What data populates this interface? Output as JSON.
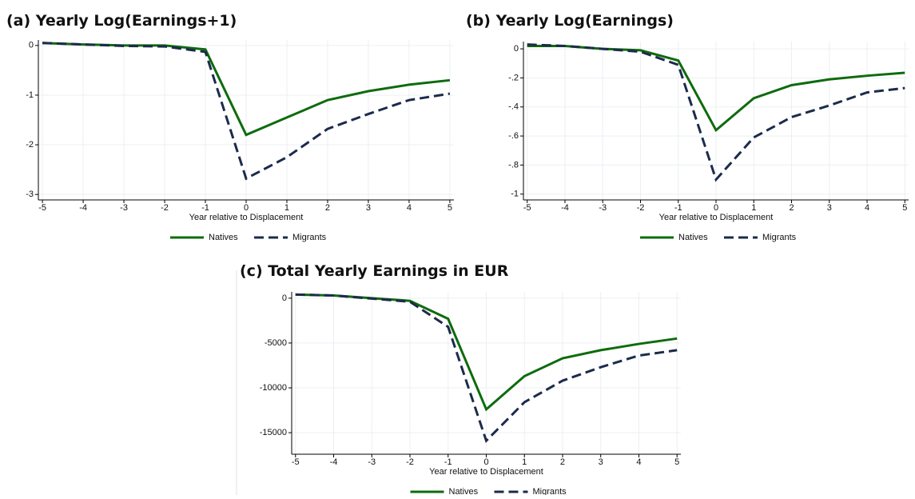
{
  "chart_data": [
    {
      "type": "line",
      "title": "(a) Yearly Log(Earnings+1)",
      "xlabel": "Year relative to Displacement",
      "x": [
        -5,
        -4,
        -3,
        -2,
        -1,
        0,
        1,
        2,
        3,
        4,
        5
      ],
      "series": [
        {
          "name": "Natives",
          "color": "#0e6b0e",
          "values": [
            0.05,
            0.02,
            0.0,
            0.0,
            -0.08,
            -1.8,
            -1.45,
            -1.1,
            -0.92,
            -0.79,
            -0.7
          ]
        },
        {
          "name": "Migrants",
          "color": "#1c2b4a",
          "values": [
            0.05,
            0.02,
            -0.01,
            -0.02,
            -0.13,
            -2.68,
            -2.25,
            -1.68,
            -1.38,
            -1.1,
            -0.97
          ]
        }
      ],
      "xlim": [
        -5.1,
        5.1
      ],
      "xticks": [
        -5,
        -4,
        -3,
        -2,
        -1,
        0,
        1,
        2,
        3,
        4,
        5
      ],
      "ylim": [
        -3.11,
        0.11
      ],
      "yticks": [
        0,
        -1,
        -2,
        -3
      ],
      "grid": true
    },
    {
      "type": "line",
      "title": "(b) Yearly Log(Earnings)",
      "xlabel": "Year relative to Displacement",
      "x": [
        -5,
        -4,
        -3,
        -2,
        -1,
        0,
        1,
        2,
        3,
        4,
        5
      ],
      "series": [
        {
          "name": "Natives",
          "color": "#0e6b0e",
          "values": [
            0.02,
            0.02,
            0.0,
            -0.01,
            -0.08,
            -0.56,
            -0.34,
            -0.25,
            -0.21,
            -0.185,
            -0.165
          ]
        },
        {
          "name": "Migrants",
          "color": "#1c2b4a",
          "values": [
            0.03,
            0.02,
            0.0,
            -0.02,
            -0.11,
            -0.9,
            -0.61,
            -0.47,
            -0.39,
            -0.3,
            -0.27
          ]
        }
      ],
      "xlim": [
        -5.1,
        5.1
      ],
      "xticks": [
        -5,
        -4,
        -3,
        -2,
        -1,
        0,
        1,
        2,
        3,
        4,
        5
      ],
      "ylim": [
        -1.04,
        0.05
      ],
      "yticks": [
        0,
        {
          "value": -0.2,
          "label": "-.2"
        },
        {
          "value": -0.4,
          "label": "-.4"
        },
        {
          "value": -0.6,
          "label": "-.6"
        },
        {
          "value": -0.8,
          "label": "-.8"
        },
        -1
      ],
      "grid": true
    },
    {
      "type": "line",
      "title": "(c) Total Yearly Earnings in EUR",
      "xlabel": "Year relative to Displacement",
      "x": [
        -5,
        -4,
        -3,
        -2,
        -1,
        0,
        1,
        2,
        3,
        4,
        5
      ],
      "series": [
        {
          "name": "Natives",
          "color": "#0e6b0e",
          "values": [
            400,
            300,
            0,
            -300,
            -2300,
            -12400,
            -8700,
            -6700,
            -5800,
            -5100,
            -4500
          ]
        },
        {
          "name": "Migrants",
          "color": "#1c2b4a",
          "values": [
            400,
            300,
            -50,
            -400,
            -3200,
            -15900,
            -11600,
            -9200,
            -7700,
            -6400,
            -5800
          ]
        }
      ],
      "xlim": [
        -5.1,
        5.1
      ],
      "xticks": [
        -5,
        -4,
        -3,
        -2,
        -1,
        0,
        1,
        2,
        3,
        4,
        5
      ],
      "ylim": [
        -17400,
        700
      ],
      "yticks": [
        0,
        -5000,
        -10000,
        -15000
      ],
      "grid": true
    }
  ]
}
